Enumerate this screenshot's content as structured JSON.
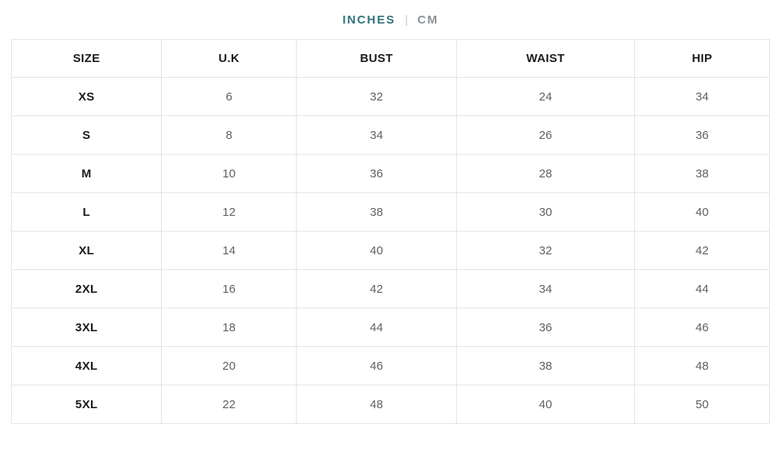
{
  "unit_toggle": {
    "inches_label": "INCHES",
    "cm_label": "CM",
    "divider": "|",
    "active_unit": "INCHES",
    "active_color": "#33747f",
    "inactive_color": "#8c9196"
  },
  "table": {
    "columns": [
      "SIZE",
      "U.K",
      "BUST",
      "WAIST",
      "HIP"
    ],
    "rows": [
      {
        "size": "XS",
        "uk": "6",
        "bust": "32",
        "waist": "24",
        "hip": "34"
      },
      {
        "size": "S",
        "uk": "8",
        "bust": "34",
        "waist": "26",
        "hip": "36"
      },
      {
        "size": "M",
        "uk": "10",
        "bust": "36",
        "waist": "28",
        "hip": "38"
      },
      {
        "size": "L",
        "uk": "12",
        "bust": "38",
        "waist": "30",
        "hip": "40"
      },
      {
        "size": "XL",
        "uk": "14",
        "bust": "40",
        "waist": "32",
        "hip": "42"
      },
      {
        "size": "2XL",
        "uk": "16",
        "bust": "42",
        "waist": "34",
        "hip": "44"
      },
      {
        "size": "3XL",
        "uk": "18",
        "bust": "44",
        "waist": "36",
        "hip": "46"
      },
      {
        "size": "4XL",
        "uk": "20",
        "bust": "46",
        "waist": "38",
        "hip": "48"
      },
      {
        "size": "5XL",
        "uk": "22",
        "bust": "48",
        "waist": "40",
        "hip": "50"
      }
    ]
  }
}
